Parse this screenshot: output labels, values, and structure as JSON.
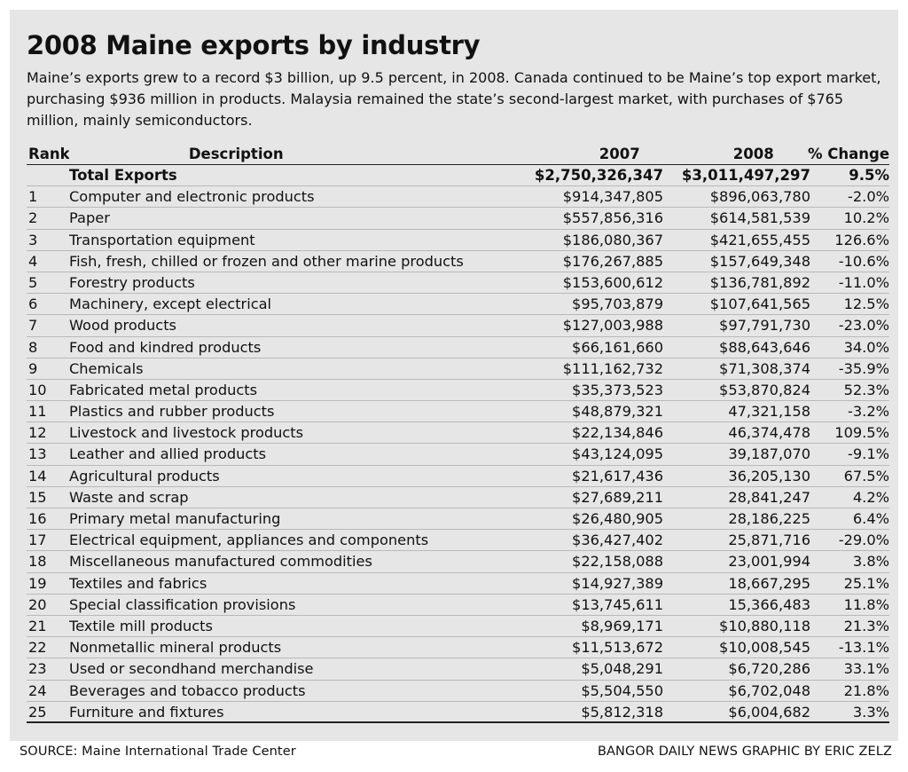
{
  "chart_data": {
    "type": "table",
    "title": "2008 Maine exports by industry",
    "subtitle": "Maine’s exports grew to a record $3 billion, up 9.5 percent, in 2008. Canada continued to be Maine’s top export market, purchasing $936 million in products. Malaysia remained the state’s second-largest market, with purchases of $765 million, mainly semiconductors.",
    "columns": [
      "Rank",
      "Description",
      "2007",
      "2008",
      "% Change"
    ],
    "total": {
      "description": "Total Exports",
      "y2007": "$2,750,326,347",
      "y2008": "$3,011,497,297",
      "change": "9.5%"
    },
    "rows": [
      {
        "rank": "1",
        "description": "Computer and electronic products",
        "y2007": "$914,347,805",
        "y2008": "$896,063,780",
        "change": "-2.0%"
      },
      {
        "rank": "2",
        "description": "Paper",
        "y2007": "$557,856,316",
        "y2008": "$614,581,539",
        "change": "10.2%"
      },
      {
        "rank": "3",
        "description": "Transportation equipment",
        "y2007": "$186,080,367",
        "y2008": "$421,655,455",
        "change": "126.6%"
      },
      {
        "rank": "4",
        "description": "Fish, fresh, chilled or frozen and other marine products",
        "y2007": "$176,267,885",
        "y2008": "$157,649,348",
        "change": "-10.6%"
      },
      {
        "rank": "5",
        "description": "Forestry products",
        "y2007": "$153,600,612",
        "y2008": "$136,781,892",
        "change": "-11.0%"
      },
      {
        "rank": "6",
        "description": "Machinery, except electrical",
        "y2007": "$95,703,879",
        "y2008": "$107,641,565",
        "change": "12.5%"
      },
      {
        "rank": "7",
        "description": "Wood products",
        "y2007": "$127,003,988",
        "y2008": "$97,791,730",
        "change": "-23.0%"
      },
      {
        "rank": "8",
        "description": "Food and kindred products",
        "y2007": "$66,161,660",
        "y2008": "$88,643,646",
        "change": "34.0%"
      },
      {
        "rank": "9",
        "description": "Chemicals",
        "y2007": "$111,162,732",
        "y2008": "$71,308,374",
        "change": "-35.9%"
      },
      {
        "rank": "10",
        "description": "Fabricated metal products",
        "y2007": "$35,373,523",
        "y2008": "$53,870,824",
        "change": "52.3%"
      },
      {
        "rank": "11",
        "description": "Plastics and rubber products",
        "y2007": "$48,879,321",
        "y2008": "47,321,158",
        "change": "-3.2%"
      },
      {
        "rank": "12",
        "description": "Livestock and livestock products",
        "y2007": "$22,134,846",
        "y2008": "46,374,478",
        "change": "109.5%"
      },
      {
        "rank": "13",
        "description": "Leather and allied products",
        "y2007": "$43,124,095",
        "y2008": "39,187,070",
        "change": "-9.1%"
      },
      {
        "rank": "14",
        "description": "Agricultural products",
        "y2007": "$21,617,436",
        "y2008": "36,205,130",
        "change": "67.5%"
      },
      {
        "rank": "15",
        "description": "Waste and scrap",
        "y2007": "$27,689,211",
        "y2008": "28,841,247",
        "change": "4.2%"
      },
      {
        "rank": "16",
        "description": "Primary metal manufacturing",
        "y2007": "$26,480,905",
        "y2008": "28,186,225",
        "change": "6.4%"
      },
      {
        "rank": "17",
        "description": "Electrical equipment, appliances and components",
        "y2007": "$36,427,402",
        "y2008": "25,871,716",
        "change": "-29.0%"
      },
      {
        "rank": "18",
        "description": "Miscellaneous manufactured commodities",
        "y2007": "$22,158,088",
        "y2008": "23,001,994",
        "change": "3.8%"
      },
      {
        "rank": "19",
        "description": "Textiles and fabrics",
        "y2007": "$14,927,389",
        "y2008": "18,667,295",
        "change": "25.1%"
      },
      {
        "rank": "20",
        "description": "Special classification provisions",
        "y2007": "$13,745,611",
        "y2008": "15,366,483",
        "change": "11.8%"
      },
      {
        "rank": "21",
        "description": "Textile mill products",
        "y2007": "$8,969,171",
        "y2008": "$10,880,118",
        "change": "21.3%"
      },
      {
        "rank": "22",
        "description": "Nonmetallic mineral products",
        "y2007": "$11,513,672",
        "y2008": "$10,008,545",
        "change": "-13.1%"
      },
      {
        "rank": "23",
        "description": "Used or secondhand merchandise",
        "y2007": "$5,048,291",
        "y2008": "$6,720,286",
        "change": "33.1%"
      },
      {
        "rank": "24",
        "description": "Beverages and tobacco products",
        "y2007": "$5,504,550",
        "y2008": "$6,702,048",
        "change": "21.8%"
      },
      {
        "rank": "25",
        "description": "Furniture and fixtures",
        "y2007": "$5,812,318",
        "y2008": "$6,004,682",
        "change": "3.3%"
      }
    ],
    "background_color": "#e6e6e6"
  },
  "footer": {
    "source": "SOURCE: Maine International Trade Center",
    "credit": "BANGOR DAILY NEWS GRAPHIC BY ERIC ZELZ"
  }
}
